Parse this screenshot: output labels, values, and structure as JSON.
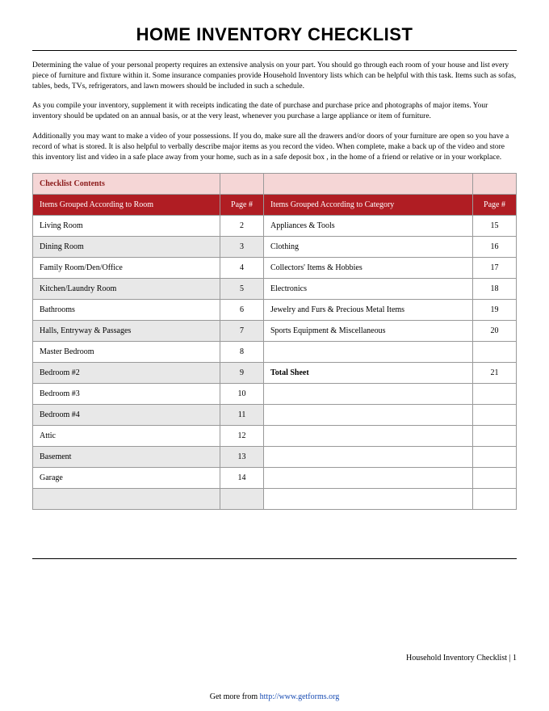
{
  "title": "HOME INVENTORY CHECKLIST",
  "paragraphs": {
    "p1": "Determining the value of your personal property requires an extensive analysis on your part. You should go through each room of your house and list every piece of furniture and fixture within it. Some insurance companies provide Household Inventory lists which can be helpful with this task. Items such as sofas, tables, beds, TVs, refrigerators, and lawn mowers should be included in such a schedule.",
    "p2": "As you compile your inventory, supplement it with receipts indicating the date of purchase and purchase price and photographs of major items. Your inventory should be updated on an annual basis, or at the very least, whenever you purchase a large appliance or item of furniture.",
    "p3": "Additionally you may want to make a video of your possessions. If you do, make sure all the drawers and/or doors of your furniture are open so you have a record of what is stored. It is also helpful to verbally describe major items as you record the video. When complete, make a back up of the video and store this inventory list and video in a safe place away from your home, such as in a safe deposit box , in the home of a friend or relative or in your workplace."
  },
  "table": {
    "header_label": "Checklist Contents",
    "subheader": {
      "col1": "Items Grouped According to Room",
      "col2": "Page #",
      "col3": "Items Grouped According to Category",
      "col4": "Page #"
    },
    "rows": [
      {
        "c1": "Living Room",
        "c2": "2",
        "c3": "Appliances & Tools",
        "c4": "15",
        "gray": false
      },
      {
        "c1": "Dining Room",
        "c2": "3",
        "c3": "Clothing",
        "c4": "16",
        "gray": true
      },
      {
        "c1": "Family Room/Den/Office",
        "c2": "4",
        "c3": "Collectors' Items & Hobbies",
        "c4": "17",
        "gray": false
      },
      {
        "c1": "Kitchen/Laundry Room",
        "c2": "5",
        "c3": "Electronics",
        "c4": "18",
        "gray": true
      },
      {
        "c1": "Bathrooms",
        "c2": "6",
        "c3": "Jewelry and Furs & Precious Metal Items",
        "c4": "19",
        "gray": false
      },
      {
        "c1": "Halls, Entryway & Passages",
        "c2": "7",
        "c3": "Sports Equipment & Miscellaneous",
        "c4": "20",
        "gray": true
      },
      {
        "c1": "Master Bedroom",
        "c2": "8",
        "c3": "",
        "c4": "",
        "gray": false
      },
      {
        "c1": "Bedroom #2",
        "c2": "9",
        "c3": "Total Sheet",
        "c4": "21",
        "gray": true,
        "c3bold": true
      },
      {
        "c1": "Bedroom #3",
        "c2": "10",
        "c3": "",
        "c4": "",
        "gray": false
      },
      {
        "c1": "Bedroom #4",
        "c2": "11",
        "c3": "",
        "c4": "",
        "gray": true
      },
      {
        "c1": "Attic",
        "c2": "12",
        "c3": "",
        "c4": "",
        "gray": false
      },
      {
        "c1": "Basement",
        "c2": "13",
        "c3": "",
        "c4": "",
        "gray": true
      },
      {
        "c1": "Garage",
        "c2": "14",
        "c3": "",
        "c4": "",
        "gray": false
      },
      {
        "c1": "",
        "c2": "",
        "c3": "",
        "c4": "",
        "gray": true
      }
    ]
  },
  "footer": {
    "right": "Household Inventory Checklist | 1",
    "center_text": "Get more from ",
    "center_link": "http://www.getforms.org"
  }
}
